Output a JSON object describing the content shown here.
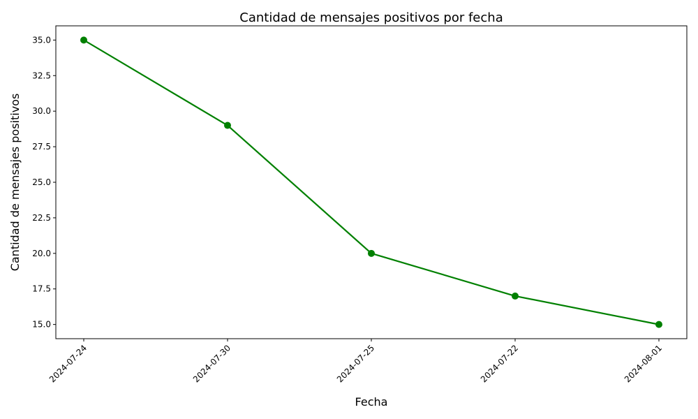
{
  "chart_data": {
    "type": "line",
    "title": "Cantidad de mensajes positivos por fecha",
    "xlabel": "Fecha",
    "ylabel": "Cantidad de mensajes positivos",
    "categories": [
      "2024-07-24",
      "2024-07-30",
      "2024-07-25",
      "2024-07-22",
      "2024-08-01"
    ],
    "series": [
      {
        "values": [
          35,
          29,
          20,
          17,
          15
        ],
        "color": "#008000"
      }
    ],
    "ylim": [
      14,
      36
    ],
    "yticks": [
      15.0,
      17.5,
      20.0,
      22.5,
      25.0,
      27.5,
      30.0,
      32.5,
      35.0
    ],
    "ytick_labels": [
      "15.0",
      "17.5",
      "20.0",
      "22.5",
      "25.0",
      "27.5",
      "30.0",
      "32.5",
      "35.0"
    ],
    "grid": false,
    "marker": "circle"
  }
}
